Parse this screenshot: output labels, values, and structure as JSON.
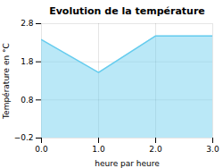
{
  "chart_data": {
    "type": "area",
    "title": "Evolution de la température",
    "xlabel": "heure par heure",
    "ylabel": "Température en °C",
    "x": [
      0,
      1,
      2,
      3
    ],
    "values": [
      2.38,
      1.52,
      2.48,
      2.48
    ],
    "color": "#66ccee",
    "xlim": [
      0,
      3
    ],
    "ylim": [
      -0.2,
      2.8
    ],
    "xticks": [
      0,
      1,
      2,
      3
    ],
    "yticks": [
      -0.2,
      0.8,
      1.8,
      2.8
    ],
    "grid": true
  }
}
